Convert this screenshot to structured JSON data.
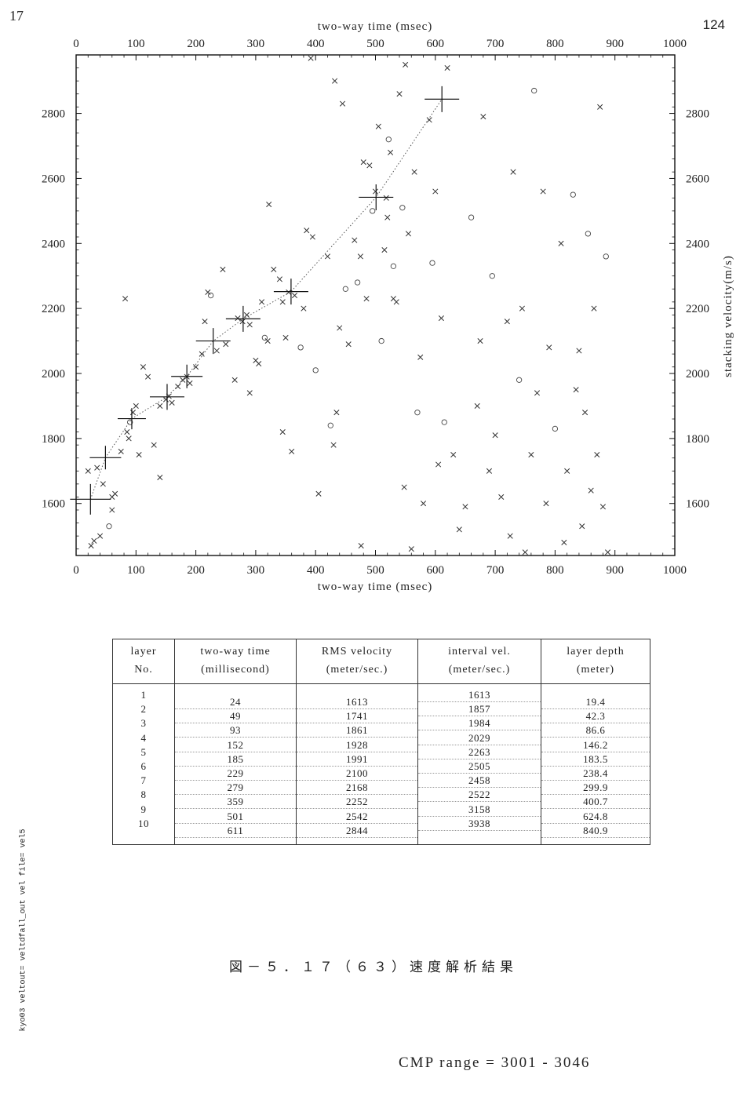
{
  "page": {
    "number_left": "17",
    "number_right": "124",
    "caption": "図－５．１７（６３）速度解析結果",
    "cmp_range": "CMP range = 3001 - 3046",
    "side_note": "kyo03 veltout= veltdfall_out vel file= vel5"
  },
  "chart_data": {
    "type": "scatter",
    "title": "",
    "xlabel": "two-way time (msec)",
    "ylabel": "stacking velocity(m/s)",
    "xlim": [
      0,
      1000
    ],
    "ylim": [
      1440,
      2980
    ],
    "xticks": [
      0,
      100,
      200,
      300,
      400,
      500,
      600,
      700,
      800,
      900,
      1000
    ],
    "yticks": [
      1600,
      1800,
      2000,
      2200,
      2400,
      2600,
      2800
    ],
    "grid": false,
    "legend": "none",
    "picks": {
      "x": [
        24,
        49,
        93,
        152,
        185,
        229,
        279,
        359,
        501,
        611
      ],
      "y": [
        1613,
        1741,
        1861,
        1928,
        1991,
        2100,
        2168,
        2252,
        2542,
        2844
      ]
    },
    "scatter_points": [
      [
        25,
        1470,
        "x"
      ],
      [
        30,
        1485,
        "x"
      ],
      [
        40,
        1500,
        "x"
      ],
      [
        55,
        1530,
        "o"
      ],
      [
        60,
        1580,
        "x"
      ],
      [
        65,
        1630,
        "x"
      ],
      [
        45,
        1660,
        "x"
      ],
      [
        20,
        1700,
        "x"
      ],
      [
        35,
        1710,
        "x"
      ],
      [
        75,
        1760,
        "x"
      ],
      [
        85,
        1820,
        "x"
      ],
      [
        90,
        1850,
        "o"
      ],
      [
        95,
        1880,
        "x"
      ],
      [
        100,
        1900,
        "x"
      ],
      [
        88,
        1800,
        "x"
      ],
      [
        130,
        1780,
        "x"
      ],
      [
        140,
        1900,
        "x"
      ],
      [
        150,
        1920,
        "x"
      ],
      [
        155,
        1930,
        "x"
      ],
      [
        160,
        1910,
        "x"
      ],
      [
        170,
        1960,
        "x"
      ],
      [
        178,
        1980,
        "x"
      ],
      [
        185,
        1990,
        "x"
      ],
      [
        190,
        1970,
        "x"
      ],
      [
        200,
        2020,
        "x"
      ],
      [
        210,
        2060,
        "x"
      ],
      [
        215,
        2160,
        "x"
      ],
      [
        220,
        2250,
        "x"
      ],
      [
        225,
        2240,
        "o"
      ],
      [
        235,
        2070,
        "x"
      ],
      [
        245,
        2320,
        "x"
      ],
      [
        250,
        2090,
        "x"
      ],
      [
        265,
        1980,
        "x"
      ],
      [
        270,
        2170,
        "x"
      ],
      [
        278,
        2160,
        "x"
      ],
      [
        285,
        2180,
        "x"
      ],
      [
        290,
        2150,
        "x"
      ],
      [
        300,
        2040,
        "x"
      ],
      [
        305,
        2030,
        "x"
      ],
      [
        310,
        2220,
        "x"
      ],
      [
        315,
        2110,
        "o"
      ],
      [
        320,
        2100,
        "x"
      ],
      [
        330,
        2320,
        "x"
      ],
      [
        340,
        2290,
        "x"
      ],
      [
        345,
        2220,
        "x"
      ],
      [
        350,
        2110,
        "x"
      ],
      [
        355,
        2250,
        "x"
      ],
      [
        365,
        2240,
        "x"
      ],
      [
        375,
        2080,
        "o"
      ],
      [
        380,
        2200,
        "x"
      ],
      [
        385,
        2440,
        "x"
      ],
      [
        395,
        2420,
        "x"
      ],
      [
        400,
        2010,
        "o"
      ],
      [
        405,
        1630,
        "x"
      ],
      [
        420,
        2360,
        "x"
      ],
      [
        425,
        1840,
        "o"
      ],
      [
        430,
        1780,
        "x"
      ],
      [
        435,
        1880,
        "x"
      ],
      [
        440,
        2140,
        "x"
      ],
      [
        445,
        2830,
        "x"
      ],
      [
        450,
        2260,
        "o"
      ],
      [
        455,
        2090,
        "x"
      ],
      [
        465,
        2410,
        "x"
      ],
      [
        470,
        2280,
        "o"
      ],
      [
        475,
        2360,
        "x"
      ],
      [
        480,
        2650,
        "x"
      ],
      [
        485,
        2230,
        "x"
      ],
      [
        490,
        2640,
        "x"
      ],
      [
        495,
        2500,
        "o"
      ],
      [
        500,
        2560,
        "x"
      ],
      [
        505,
        2760,
        "x"
      ],
      [
        510,
        2100,
        "o"
      ],
      [
        515,
        2380,
        "x"
      ],
      [
        520,
        2480,
        "x"
      ],
      [
        525,
        2680,
        "x"
      ],
      [
        530,
        2330,
        "o"
      ],
      [
        535,
        2220,
        "x"
      ],
      [
        540,
        2860,
        "x"
      ],
      [
        545,
        2510,
        "o"
      ],
      [
        550,
        2950,
        "x"
      ],
      [
        555,
        2430,
        "x"
      ],
      [
        560,
        1460,
        "x"
      ],
      [
        565,
        2620,
        "x"
      ],
      [
        570,
        1880,
        "o"
      ],
      [
        575,
        2050,
        "x"
      ],
      [
        580,
        1600,
        "x"
      ],
      [
        590,
        2780,
        "x"
      ],
      [
        595,
        2340,
        "o"
      ],
      [
        600,
        2560,
        "x"
      ],
      [
        605,
        1720,
        "x"
      ],
      [
        610,
        2170,
        "x"
      ],
      [
        615,
        1850,
        "o"
      ],
      [
        620,
        2940,
        "x"
      ],
      [
        630,
        1750,
        "x"
      ],
      [
        640,
        1520,
        "x"
      ],
      [
        650,
        1590,
        "x"
      ],
      [
        660,
        2480,
        "o"
      ],
      [
        670,
        1900,
        "x"
      ],
      [
        675,
        2100,
        "x"
      ],
      [
        680,
        2790,
        "x"
      ],
      [
        690,
        1700,
        "x"
      ],
      [
        695,
        2300,
        "o"
      ],
      [
        700,
        1810,
        "x"
      ],
      [
        710,
        1620,
        "x"
      ],
      [
        720,
        2160,
        "x"
      ],
      [
        725,
        1500,
        "x"
      ],
      [
        730,
        2620,
        "x"
      ],
      [
        740,
        1980,
        "o"
      ],
      [
        745,
        2200,
        "x"
      ],
      [
        750,
        1450,
        "x"
      ],
      [
        760,
        1750,
        "x"
      ],
      [
        765,
        2870,
        "o"
      ],
      [
        770,
        1940,
        "x"
      ],
      [
        780,
        2560,
        "x"
      ],
      [
        785,
        1600,
        "x"
      ],
      [
        790,
        2080,
        "x"
      ],
      [
        800,
        1830,
        "o"
      ],
      [
        810,
        2400,
        "x"
      ],
      [
        815,
        1480,
        "x"
      ],
      [
        820,
        1700,
        "x"
      ],
      [
        830,
        2550,
        "o"
      ],
      [
        835,
        1950,
        "x"
      ],
      [
        840,
        2070,
        "x"
      ],
      [
        845,
        1530,
        "x"
      ],
      [
        850,
        1880,
        "x"
      ],
      [
        855,
        2430,
        "o"
      ],
      [
        860,
        1640,
        "x"
      ],
      [
        865,
        2200,
        "x"
      ],
      [
        870,
        1750,
        "x"
      ],
      [
        875,
        2820,
        "x"
      ],
      [
        880,
        1590,
        "x"
      ],
      [
        885,
        2360,
        "o"
      ],
      [
        888,
        1450,
        "x"
      ],
      [
        82,
        2230,
        "x"
      ],
      [
        112,
        2020,
        "x"
      ],
      [
        120,
        1990,
        "x"
      ],
      [
        60,
        1620,
        "x"
      ],
      [
        105,
        1750,
        "x"
      ],
      [
        140,
        1680,
        "x"
      ],
      [
        290,
        1940,
        "x"
      ],
      [
        322,
        2520,
        "x"
      ],
      [
        345,
        1820,
        "x"
      ],
      [
        360,
        1760,
        "x"
      ],
      [
        392,
        2970,
        "x"
      ],
      [
        432,
        2900,
        "x"
      ],
      [
        476,
        1470,
        "x"
      ],
      [
        518,
        2540,
        "x"
      ],
      [
        522,
        2720,
        "o"
      ],
      [
        530,
        2230,
        "x"
      ],
      [
        548,
        1650,
        "x"
      ]
    ]
  },
  "table": {
    "headers": [
      [
        "layer",
        "No."
      ],
      [
        "two-way time",
        "(millisecond)"
      ],
      [
        "RMS velocity",
        "(meter/sec.)"
      ],
      [
        "interval vel.",
        "(meter/sec.)"
      ],
      [
        "layer depth",
        "(meter)"
      ]
    ],
    "layer_no": [
      "1",
      "2",
      "3",
      "4",
      "5",
      "6",
      "7",
      "8",
      "9",
      "10"
    ],
    "two_way_time": [
      "24",
      "49",
      "93",
      "152",
      "185",
      "229",
      "279",
      "359",
      "501",
      "611"
    ],
    "rms_velocity": [
      "1613",
      "1741",
      "1861",
      "1928",
      "1991",
      "2100",
      "2168",
      "2252",
      "2542",
      "2844"
    ],
    "interval_vel": [
      "1613",
      "1857",
      "1984",
      "2029",
      "2263",
      "2505",
      "2458",
      "2522",
      "3158",
      "3938"
    ],
    "layer_depth": [
      "19.4",
      "42.3",
      "86.6",
      "146.2",
      "183.5",
      "238.4",
      "299.9",
      "400.7",
      "624.8",
      "840.9"
    ]
  }
}
